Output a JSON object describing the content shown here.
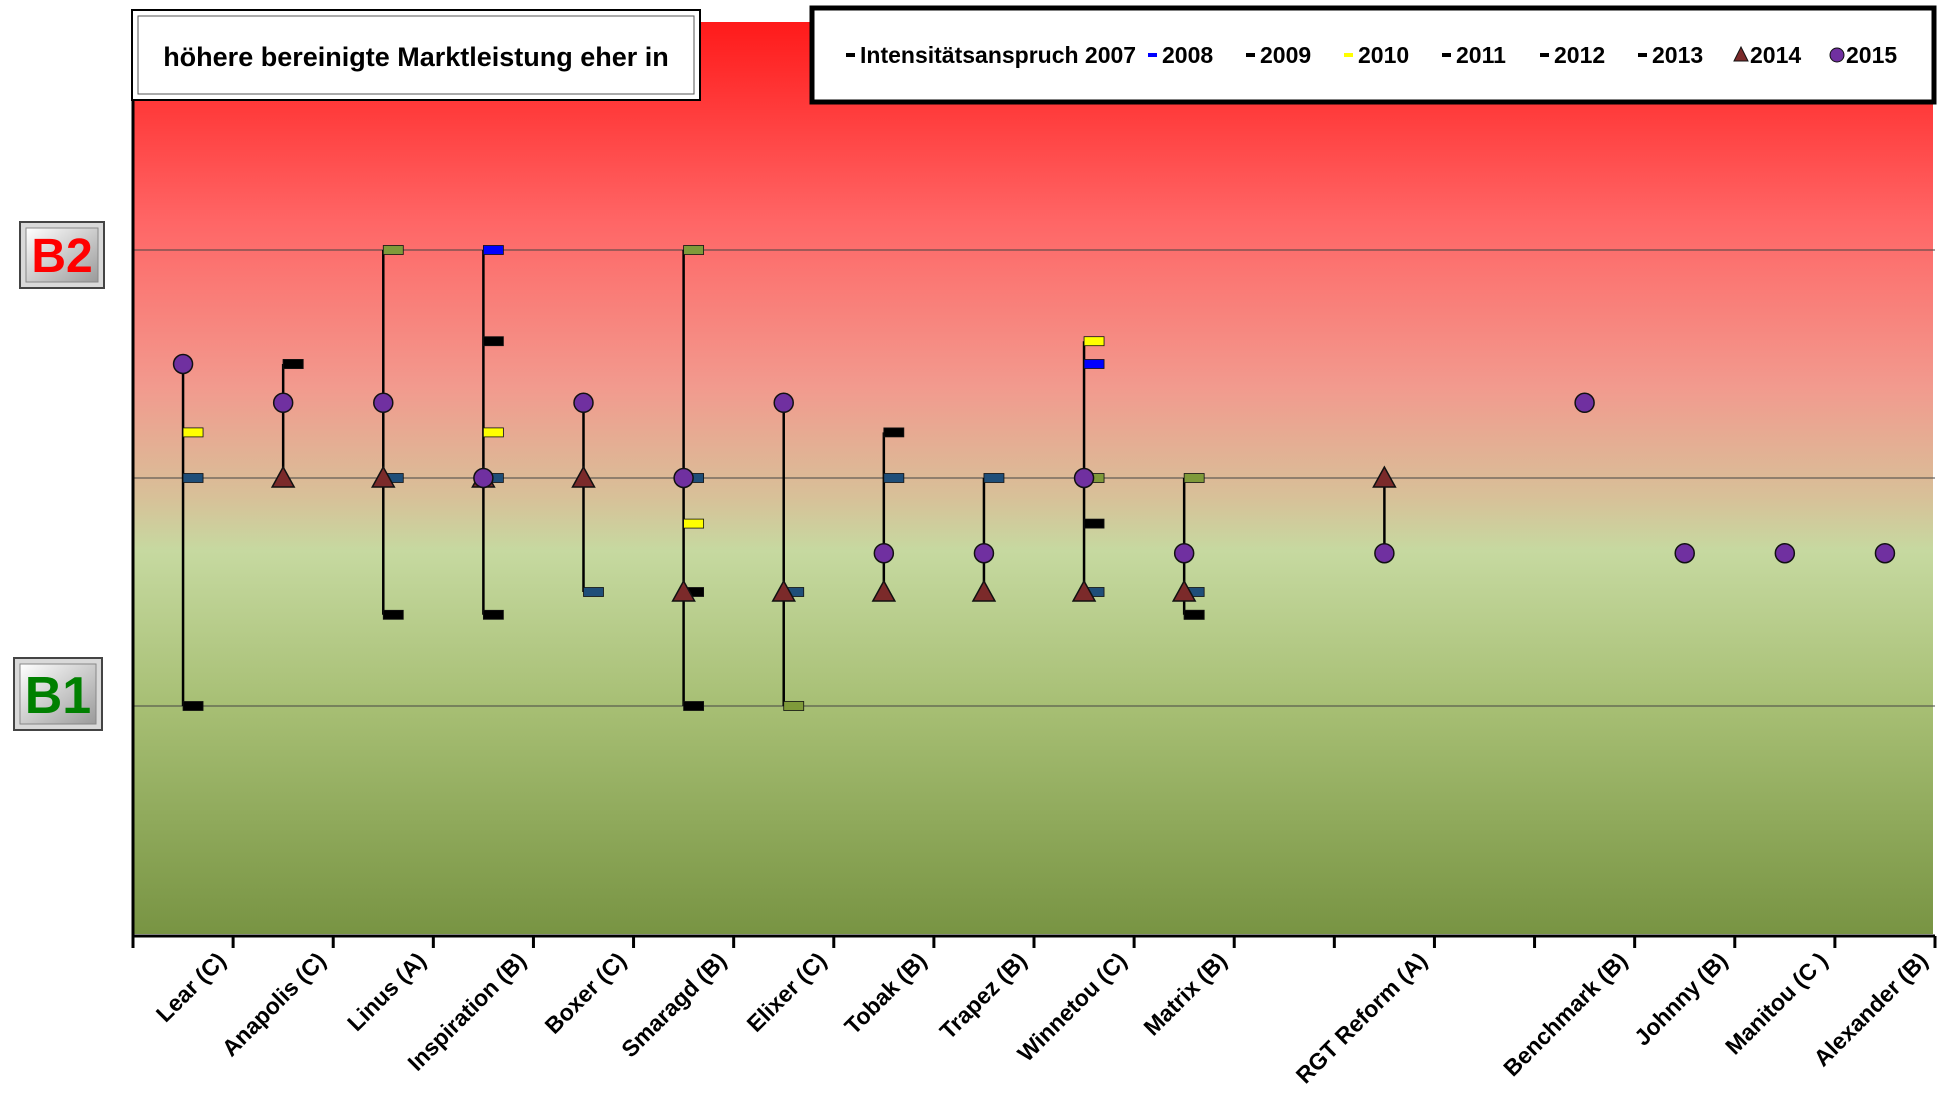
{
  "chart_data": {
    "type": "scatter",
    "title": "höhere bereinigte Marktleistung eher in",
    "xlabel": "",
    "ylabel": "",
    "ylim": [
      0,
      4
    ],
    "y_band_labels": [
      {
        "text": "B2",
        "value": 3,
        "color": "#ff0000"
      },
      {
        "text": "B1",
        "value": 1,
        "color": "#008000"
      }
    ],
    "grid": true,
    "legend_position": "top-right",
    "categories": [
      "Lear (C)",
      "Anapolis (C)",
      "Linus (A)",
      "Inspiration (B)",
      "Boxer (C)",
      "Smaragd (B)",
      "Elixer (C)",
      "Tobak (B)",
      "Trapez (B)",
      "Winnetou (C)",
      "Matrix (B)",
      "",
      "RGT Reform (A)",
      "",
      "Benchmark (B)",
      "Johnny (B)",
      "Manitou (C )",
      "Alexander (B)"
    ],
    "series": [
      {
        "name": "Intensitätsanspruch 2007",
        "marker": "dash",
        "color": "#000000",
        "values": [
          1,
          2.5,
          1.4,
          2.6,
          null,
          1.0,
          null,
          2.2,
          null,
          1.8,
          1.4,
          null,
          null,
          null,
          null,
          null,
          null,
          null
        ]
      },
      {
        "name": "2008",
        "marker": "dash",
        "color": "#0000ff",
        "values": [
          null,
          null,
          null,
          3.0,
          null,
          null,
          null,
          null,
          null,
          2.5,
          null,
          null,
          null,
          null,
          null,
          null,
          null,
          null
        ]
      },
      {
        "name": "2009",
        "marker": "dash",
        "color": "#1f4e79",
        "values": [
          2.0,
          2.5,
          2.0,
          2.0,
          1.5,
          2.0,
          1.5,
          2.0,
          2.0,
          1.5,
          1.5,
          null,
          null,
          null,
          null,
          null,
          null,
          null
        ]
      },
      {
        "name": "2010",
        "marker": "dash",
        "color": "#ffff00",
        "values": [
          2.2,
          null,
          null,
          2.2,
          null,
          1.8,
          null,
          null,
          null,
          2.6,
          null,
          null,
          null,
          null,
          null,
          null,
          null,
          null
        ]
      },
      {
        "name": "2011",
        "marker": "dash",
        "color": "#000000",
        "values": [
          null,
          null,
          null,
          1.4,
          null,
          1.5,
          null,
          null,
          null,
          null,
          1.4,
          null,
          null,
          null,
          null,
          null,
          null,
          null
        ]
      },
      {
        "name": "2012",
        "marker": "dash",
        "color": "#000000",
        "values": [
          null,
          null,
          null,
          null,
          null,
          null,
          null,
          null,
          null,
          null,
          null,
          null,
          null,
          null,
          null,
          null,
          null,
          null
        ]
      },
      {
        "name": "2013",
        "marker": "dash",
        "color": "#7f9a3a",
        "values": [
          null,
          null,
          3.0,
          null,
          null,
          3.0,
          1.0,
          null,
          null,
          2.0,
          2.0,
          null,
          null,
          null,
          null,
          null,
          null,
          null
        ]
      },
      {
        "name": "2014",
        "marker": "triangle",
        "color": "#7b2a2a",
        "values": [
          null,
          2.0,
          2.0,
          2.0,
          2.0,
          1.5,
          1.5,
          1.5,
          1.5,
          1.5,
          1.5,
          null,
          2.0,
          null,
          null,
          null,
          null,
          null
        ]
      },
      {
        "name": "2015",
        "marker": "circle",
        "color": "#7030a0",
        "values": [
          2.5,
          2.33,
          2.33,
          2.0,
          2.33,
          2.0,
          2.33,
          1.67,
          1.67,
          2.0,
          1.67,
          null,
          1.67,
          null,
          2.33,
          1.67,
          1.67,
          1.67
        ]
      }
    ]
  }
}
